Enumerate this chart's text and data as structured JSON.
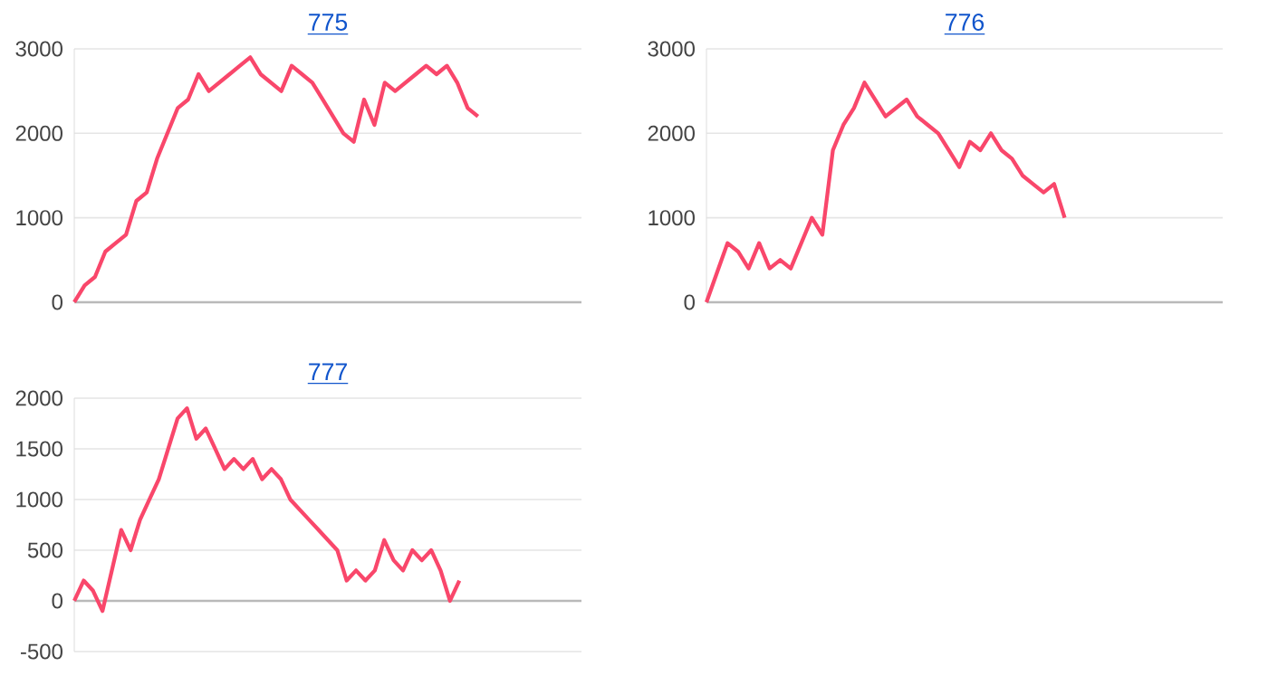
{
  "chart_data": [
    {
      "type": "line",
      "title": "775",
      "categories": [
        null,
        null,
        null,
        null,
        null,
        null,
        null,
        null,
        null,
        null,
        null,
        null,
        null,
        null,
        null,
        null,
        null,
        null,
        null,
        null,
        null,
        null,
        null,
        null,
        null,
        null,
        null,
        null,
        null,
        null,
        null,
        null,
        null,
        null,
        null,
        null,
        null,
        null,
        null,
        null,
        null,
        null,
        null,
        null,
        null,
        null,
        null,
        null,
        null,
        null
      ],
      "values": [
        0,
        200,
        300,
        600,
        700,
        800,
        1200,
        1300,
        1700,
        2000,
        2300,
        2400,
        2700,
        2500,
        2600,
        2700,
        2800,
        2900,
        2700,
        2600,
        2500,
        2800,
        2700,
        2600,
        2400,
        2200,
        2000,
        1900,
        2400,
        2100,
        2600,
        2500,
        2600,
        2700,
        2800,
        2700,
        2800,
        2600,
        2300,
        2200,
        null,
        null,
        null,
        null,
        null,
        null,
        null,
        null,
        null,
        null
      ],
      "color": "#f9476b",
      "ylim": [
        0,
        3000
      ],
      "yticks": [
        0,
        1000,
        2000,
        3000
      ],
      "grid": "y"
    },
    {
      "type": "line",
      "title": "776",
      "categories": [
        null,
        null,
        null,
        null,
        null,
        null,
        null,
        null,
        null,
        null,
        null,
        null,
        null,
        null,
        null,
        null,
        null,
        null,
        null,
        null,
        null,
        null,
        null,
        null,
        null,
        null,
        null,
        null,
        null,
        null,
        null,
        null,
        null,
        null,
        null,
        null,
        null,
        null,
        null,
        null,
        null,
        null,
        null,
        null,
        null,
        null,
        null,
        null,
        null,
        null
      ],
      "values": [
        0,
        350,
        700,
        600,
        400,
        700,
        400,
        500,
        400,
        700,
        1000,
        800,
        1800,
        2100,
        2300,
        2600,
        2400,
        2200,
        2300,
        2400,
        2200,
        2100,
        2000,
        1800,
        1600,
        1900,
        1800,
        2000,
        1800,
        1700,
        1500,
        1400,
        1300,
        1400,
        1000,
        null,
        null,
        null,
        null,
        null,
        null,
        null,
        null,
        null,
        null,
        null,
        null,
        null,
        null,
        null
      ],
      "color": "#f9476b",
      "ylim": [
        0,
        3000
      ],
      "yticks": [
        0,
        1000,
        2000,
        3000
      ],
      "grid": "y"
    },
    {
      "type": "line",
      "title": "777",
      "categories": [
        null,
        null,
        null,
        null,
        null,
        null,
        null,
        null,
        null,
        null,
        null,
        null,
        null,
        null,
        null,
        null,
        null,
        null,
        null,
        null,
        null,
        null,
        null,
        null,
        null,
        null,
        null,
        null,
        null,
        null,
        null,
        null,
        null,
        null,
        null,
        null,
        null,
        null,
        null,
        null,
        null,
        null,
        null,
        null,
        null,
        null,
        null,
        null,
        null,
        null,
        null,
        null,
        null,
        null,
        null
      ],
      "values": [
        0,
        200,
        100,
        -100,
        300,
        700,
        500,
        800,
        1000,
        1200,
        1500,
        1800,
        1900,
        1600,
        1700,
        1500,
        1300,
        1400,
        1300,
        1400,
        1200,
        1300,
        1200,
        1000,
        900,
        800,
        700,
        600,
        500,
        200,
        300,
        200,
        300,
        600,
        400,
        300,
        500,
        400,
        500,
        300,
        0,
        200,
        null,
        null,
        null,
        null,
        null,
        null,
        null,
        null,
        null,
        null,
        null,
        null,
        null
      ],
      "color": "#f9476b",
      "ylim": [
        -500,
        2000
      ],
      "yticks": [
        -500,
        0,
        500,
        1000,
        1500,
        2000
      ],
      "grid": "y"
    }
  ]
}
